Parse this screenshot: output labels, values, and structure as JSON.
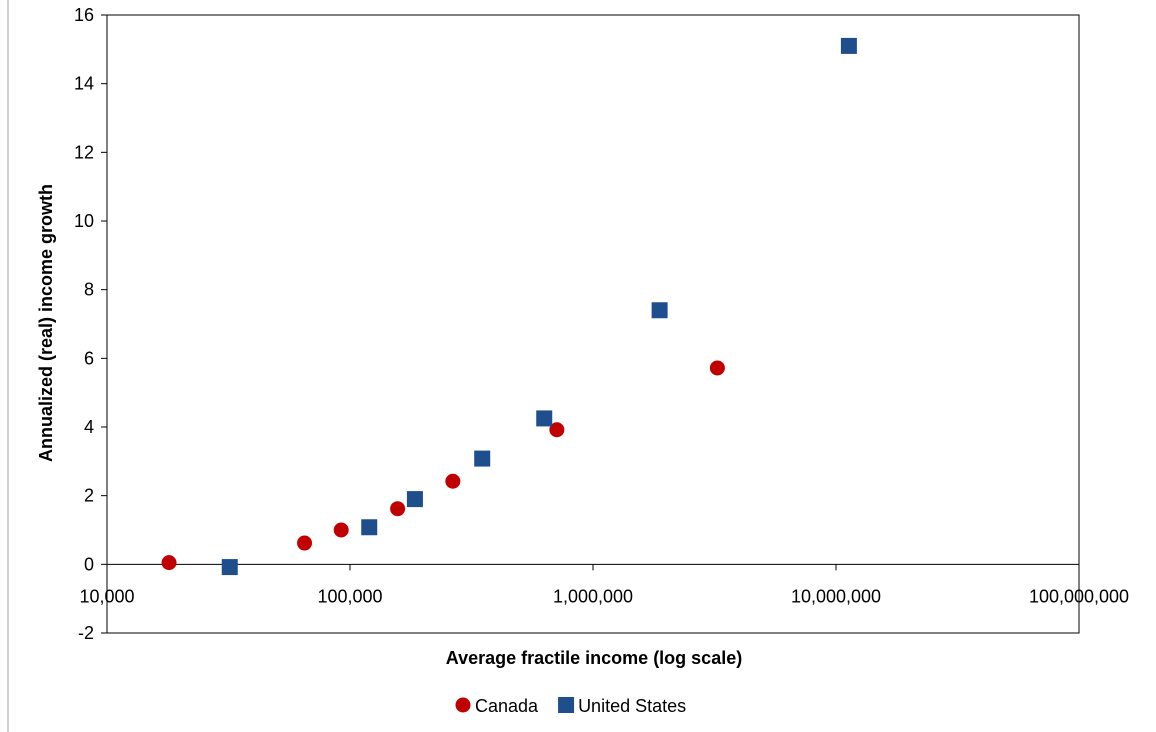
{
  "chart_data": {
    "type": "scatter",
    "title": "",
    "xlabel": "Average fractile income (log scale)",
    "ylabel": "Annualized (real) income growth",
    "x_scale": "log",
    "xlim": [
      10000,
      100000000
    ],
    "ylim": [
      -2,
      16
    ],
    "x_ticks": [
      10000,
      100000,
      1000000,
      10000000,
      100000000
    ],
    "x_tick_labels": [
      "10,000",
      "100,000",
      "1,000,000",
      "10,000,000",
      "100,000,000"
    ],
    "y_ticks": [
      -2,
      0,
      2,
      4,
      6,
      8,
      10,
      12,
      14,
      16
    ],
    "y_tick_labels": [
      "-2",
      "0",
      "2",
      "4",
      "6",
      "8",
      "10",
      "12",
      "14",
      "16"
    ],
    "grid": false,
    "legend_position": "bottom",
    "series": [
      {
        "name": "Canada",
        "marker": "circle",
        "color": "#C00000",
        "points": [
          {
            "x": 18000,
            "y": 0.05
          },
          {
            "x": 65000,
            "y": 0.62
          },
          {
            "x": 92000,
            "y": 1.0
          },
          {
            "x": 157000,
            "y": 1.62
          },
          {
            "x": 265000,
            "y": 2.42
          },
          {
            "x": 710000,
            "y": 3.92
          },
          {
            "x": 3250000,
            "y": 5.72
          }
        ]
      },
      {
        "name": "United States",
        "marker": "square",
        "color": "#1F4E8C",
        "points": [
          {
            "x": 32000,
            "y": -0.08
          },
          {
            "x": 120000,
            "y": 1.08
          },
          {
            "x": 185000,
            "y": 1.9
          },
          {
            "x": 350000,
            "y": 3.08
          },
          {
            "x": 630000,
            "y": 4.25
          },
          {
            "x": 1880000,
            "y": 7.4
          },
          {
            "x": 11300000,
            "y": 15.1
          }
        ]
      }
    ]
  }
}
